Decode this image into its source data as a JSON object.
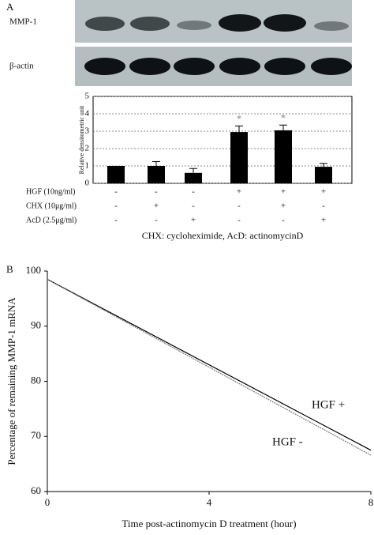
{
  "panels": {
    "a": "A",
    "b": "B"
  },
  "blot": {
    "rows": [
      "MMP-1",
      "β-actin"
    ]
  },
  "chart_data": [
    {
      "type": "bar",
      "ylabel": "Relative densitometric unit",
      "values": [
        1,
        1,
        0.6,
        2.95,
        3.05,
        0.95
      ],
      "errors": [
        null,
        0.25,
        0.25,
        0.35,
        0.3,
        0.2
      ],
      "significance": [
        null,
        null,
        null,
        "*",
        "*",
        null
      ],
      "color": "#000000",
      "ylim": [
        0,
        5
      ],
      "yticks": [
        0,
        1,
        2,
        3,
        4,
        5
      ],
      "grid": true,
      "treatments": [
        {
          "name": "HGF (10ng/ml)",
          "signs": [
            "-",
            "-",
            "-",
            "+",
            "+",
            "+"
          ]
        },
        {
          "name": "CHX (10μg/ml)",
          "signs": [
            "-",
            "+",
            "-",
            "-",
            "+",
            "-"
          ]
        },
        {
          "name": "AcD (2.5μg/ml)",
          "signs": [
            "-",
            "-",
            "+",
            "-",
            "-",
            "+"
          ]
        }
      ],
      "note": "CHX: cycloheximide, AcD: actinomycinD"
    },
    {
      "type": "line",
      "xlabel": "Time post-actinomycin D treatment (hour)",
      "ylabel": "Percentage of remaining MMP-1 mRNA",
      "xlim": [
        0,
        8
      ],
      "ylim": [
        60,
        100
      ],
      "xticks": [
        0,
        4,
        8
      ],
      "yticks": [
        60,
        70,
        80,
        90,
        100
      ],
      "series": [
        {
          "name": "HGF +",
          "color": "#000000",
          "x": [
            0,
            8
          ],
          "values": [
            98.5,
            67.5
          ]
        },
        {
          "name": "HGF -",
          "color": "#777777",
          "x": [
            0,
            8
          ],
          "values": [
            98.5,
            66.6
          ]
        }
      ]
    }
  ]
}
